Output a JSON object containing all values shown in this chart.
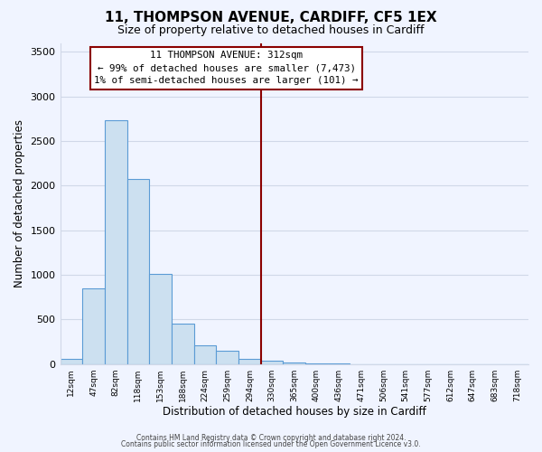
{
  "title": "11, THOMPSON AVENUE, CARDIFF, CF5 1EX",
  "subtitle": "Size of property relative to detached houses in Cardiff",
  "xlabel": "Distribution of detached houses by size in Cardiff",
  "ylabel": "Number of detached properties",
  "bar_labels": [
    "12sqm",
    "47sqm",
    "82sqm",
    "118sqm",
    "153sqm",
    "188sqm",
    "224sqm",
    "259sqm",
    "294sqm",
    "330sqm",
    "365sqm",
    "400sqm",
    "436sqm",
    "471sqm",
    "506sqm",
    "541sqm",
    "577sqm",
    "612sqm",
    "647sqm",
    "683sqm",
    "718sqm"
  ],
  "bar_values": [
    55,
    850,
    2730,
    2075,
    1010,
    455,
    210,
    145,
    60,
    40,
    20,
    10,
    5,
    2,
    1,
    0,
    0,
    0,
    0,
    0,
    0
  ],
  "bar_color": "#cce0f0",
  "bar_edge_color": "#5b9bd5",
  "vline_x_index": 8.5,
  "vline_color": "#8b0000",
  "annotation_line1": "11 THOMPSON AVENUE: 312sqm",
  "annotation_line2": "← 99% of detached houses are smaller (7,473)",
  "annotation_line3": "1% of semi-detached houses are larger (101) →",
  "ylim": [
    0,
    3600
  ],
  "yticks": [
    0,
    500,
    1000,
    1500,
    2000,
    2500,
    3000,
    3500
  ],
  "footer1": "Contains HM Land Registry data © Crown copyright and database right 2024.",
  "footer2": "Contains public sector information licensed under the Open Government Licence v3.0.",
  "background_color": "#f0f4ff",
  "grid_color": "#d0d8e8",
  "title_fontsize": 11,
  "subtitle_fontsize": 9
}
